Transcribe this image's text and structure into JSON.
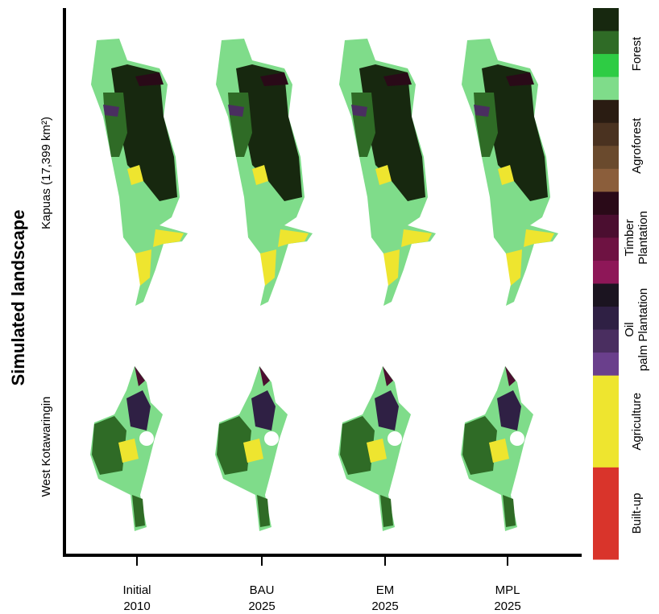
{
  "figure": {
    "y_title": "Simulated landscape",
    "rows": [
      "Kapuas (17,399 km²)",
      "West Kotawaringin"
    ],
    "columns": [
      {
        "name": "Initial",
        "year": "2010"
      },
      {
        "name": "BAU",
        "year": "2025"
      },
      {
        "name": "EM",
        "year": "2025"
      },
      {
        "name": "MPL",
        "year": "2025"
      }
    ],
    "legend": [
      {
        "label": "Forest",
        "colors": [
          "#17280f",
          "#2f6b26",
          "#2ecc44",
          "#7fdc8a"
        ]
      },
      {
        "label": "Agroforest",
        "colors": [
          "#2a1c12",
          "#4a3220",
          "#6a4a2d",
          "#8b5e3b"
        ]
      },
      {
        "label": "Timber Plantation",
        "colors": [
          "#2a0a18",
          "#4b0e30",
          "#6e1242",
          "#8e1758"
        ]
      },
      {
        "label": "Oil palm Plantation",
        "colors": [
          "#1b1420",
          "#2f2044",
          "#4a2e60",
          "#6a3f8c"
        ]
      },
      {
        "label": "Agriculture",
        "colors": [
          "#eee52f"
        ]
      },
      {
        "label": "Built-up",
        "colors": [
          "#d9342b"
        ]
      }
    ]
  }
}
